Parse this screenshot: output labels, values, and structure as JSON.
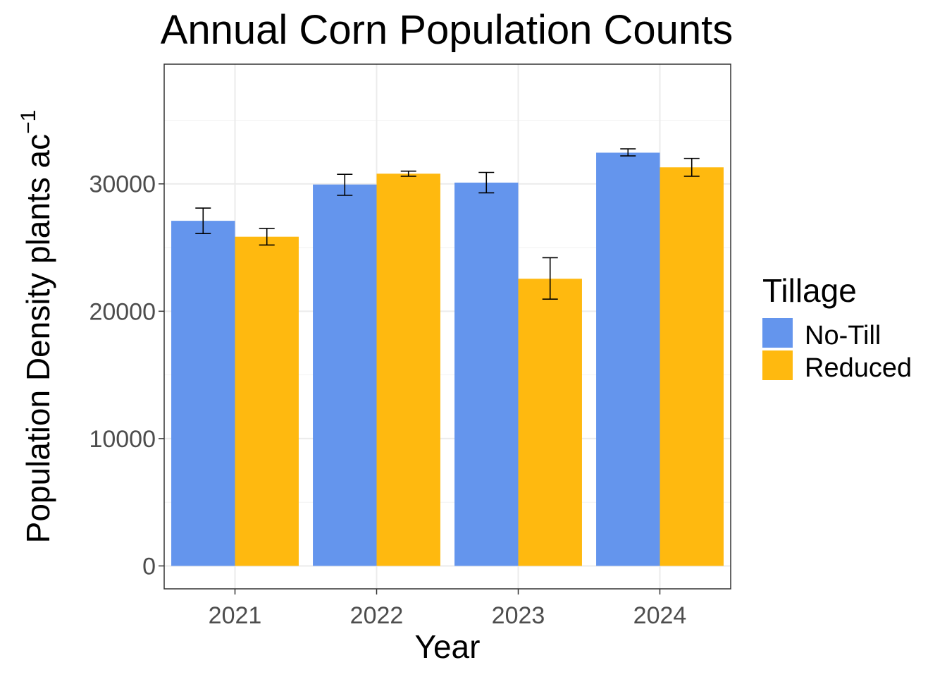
{
  "chart_data": {
    "type": "bar",
    "title": "Annual Corn Population Counts",
    "xlabel": "Year",
    "ylabel": "Population Density plants ac",
    "ylabel_superscript": "−1",
    "categories": [
      "2021",
      "2022",
      "2023",
      "2024"
    ],
    "series": [
      {
        "name": "No-Till",
        "color": "#6495ED",
        "values": [
          27100,
          29950,
          30100,
          32450
        ],
        "err_low": [
          26100,
          29100,
          29300,
          32200
        ],
        "err_high": [
          28100,
          30750,
          30900,
          32750
        ]
      },
      {
        "name": "Reduced",
        "color": "#FFB90F",
        "values": [
          25850,
          30800,
          22550,
          31300
        ],
        "err_low": [
          25200,
          30600,
          20950,
          30600
        ],
        "err_high": [
          26500,
          31000,
          24200,
          32000
        ]
      }
    ],
    "yticks": [
      0,
      10000,
      20000,
      30000
    ],
    "yticks_labels": [
      "0",
      "10000",
      "20000",
      "30000"
    ],
    "ylim": [
      -1800,
      39400
    ],
    "grid": true,
    "legend": {
      "title": "Tillage",
      "position": "right"
    }
  }
}
